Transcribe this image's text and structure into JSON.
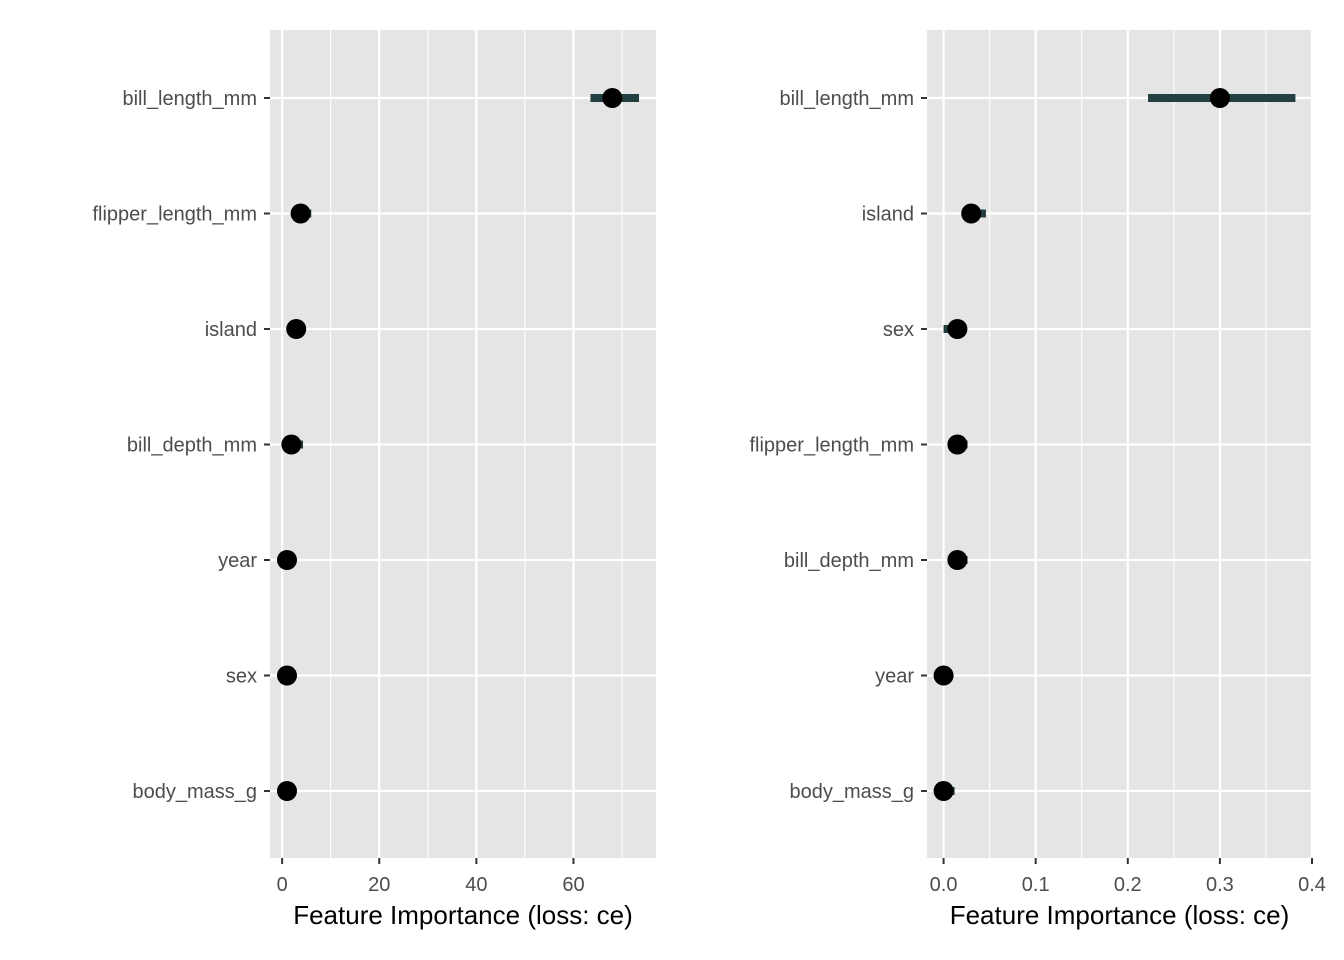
{
  "chart_data": [
    {
      "type": "scatter",
      "xlabel": "Feature Importance (loss: ce)",
      "xlim": [
        -2.5,
        77
      ],
      "xticks": [
        0,
        20,
        40,
        60
      ],
      "xtick_labels": [
        "0",
        "20",
        "40",
        "60"
      ],
      "grid": true,
      "features": [
        "bill_length_mm",
        "flipper_length_mm",
        "island",
        "bill_depth_mm",
        "year",
        "sex",
        "body_mass_g"
      ],
      "importance": [
        68,
        3.8,
        2.9,
        1.9,
        1.0,
        1.0,
        1.0
      ],
      "lower": [
        63.5,
        2.0,
        1.9,
        0.9,
        0.5,
        0.5,
        0.5
      ],
      "upper": [
        73.5,
        6.0,
        3.4,
        4.3,
        1.4,
        1.4,
        1.4
      ],
      "colors": {
        "point": "#000000",
        "interval": "#243f3f",
        "panel": "#e5e5e5",
        "grid": "#ffffff"
      }
    },
    {
      "type": "scatter",
      "xlabel": "Feature Importance (loss: ce)",
      "xlim": [
        -0.018,
        0.4
      ],
      "xticks": [
        0.0,
        0.1,
        0.2,
        0.3,
        0.4
      ],
      "xtick_labels": [
        "0.0",
        "0.1",
        "0.2",
        "0.3",
        "0.4"
      ],
      "grid": true,
      "features": [
        "bill_length_mm",
        "island",
        "sex",
        "flipper_length_mm",
        "bill_depth_mm",
        "year",
        "body_mass_g"
      ],
      "importance": [
        0.3,
        0.03,
        0.015,
        0.015,
        0.015,
        0.0,
        0.0
      ],
      "lower": [
        0.222,
        0.02,
        0.0,
        0.006,
        0.006,
        0.0,
        0.0
      ],
      "upper": [
        0.382,
        0.046,
        0.018,
        0.026,
        0.026,
        0.0,
        0.012
      ],
      "colors": {
        "point": "#000000",
        "interval": "#243f3f",
        "panel": "#e5e5e5",
        "grid": "#ffffff"
      }
    }
  ]
}
